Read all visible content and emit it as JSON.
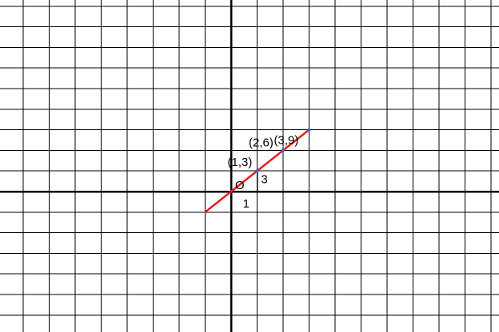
{
  "chart_data": {
    "type": "line",
    "title": "",
    "xlabel": "",
    "ylabel": "",
    "grid": true,
    "legend": "none",
    "xlim": [
      -9,
      11
    ],
    "ylim": [
      -6.5,
      9.5
    ],
    "series": [
      {
        "color": "#e41b1b",
        "x": [
          -1,
          3
        ],
        "y": [
          -3,
          9
        ]
      }
    ],
    "points": [
      {
        "x": 1,
        "y": 3,
        "label": "(1,3)"
      },
      {
        "x": 2,
        "y": 6,
        "label": "(2,6)"
      },
      {
        "x": 3,
        "y": 9,
        "label": "(3,9)"
      }
    ],
    "origin_label": "O",
    "run_label": "1",
    "rise_label": "3",
    "colors": {
      "line": "#e41b1b",
      "point": "#2f6fd6",
      "grid": "#000000"
    }
  }
}
